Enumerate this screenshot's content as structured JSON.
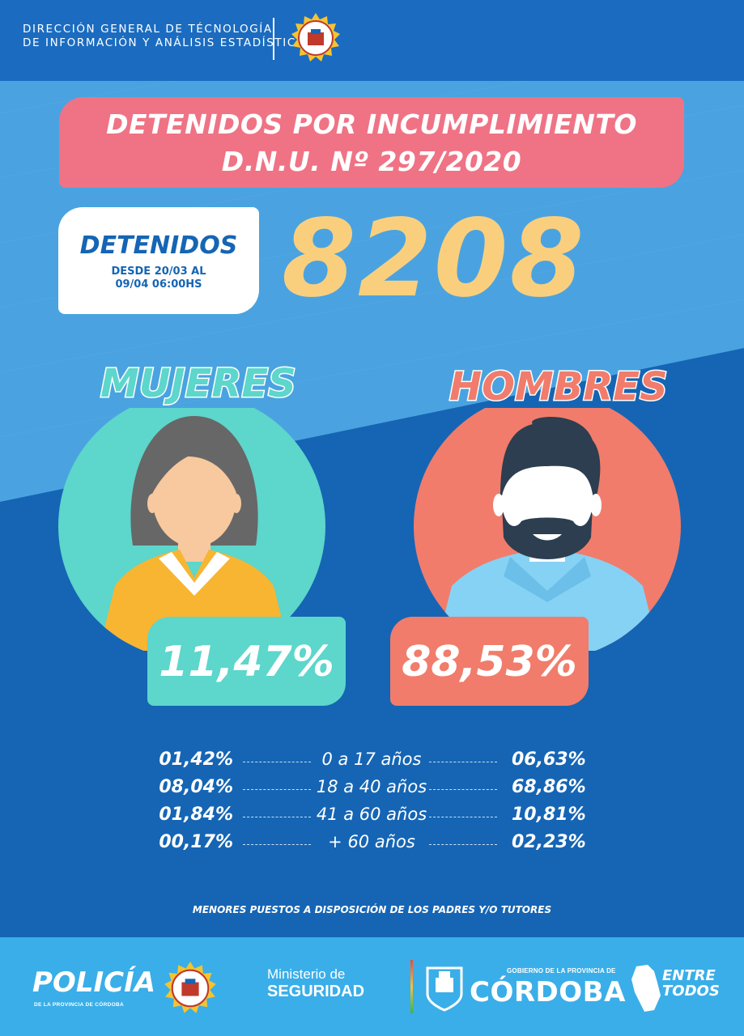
{
  "header": {
    "org_line1": "DIRECCIÓN GENERAL DE TÉCNOLOGÍA",
    "org_line2": "DE INFORMACIÓN Y ANÁLISIS ESTADÍSTICO"
  },
  "title": {
    "line1": "DETENIDOS POR INCUMPLIMIENTO",
    "line2": "D.N.U. Nº 297/2020"
  },
  "detenidos": {
    "label": "DETENIDOS",
    "period_line1": "DESDE 20/03 AL",
    "period_line2": "09/04 06:00HS",
    "total": "8208"
  },
  "women": {
    "label": "MUJERES",
    "percent": "11,47%",
    "color": "#5dd6cb"
  },
  "men": {
    "label": "HOMBRES",
    "percent": "88,53%",
    "color": "#f17c6b"
  },
  "age_breakdown": [
    {
      "women": "01,42%",
      "range": "0 a 17 años",
      "men": "06,63%"
    },
    {
      "women": "08,04%",
      "range": "18 a 40 años",
      "men": "68,86%"
    },
    {
      "women": "01,84%",
      "range": "41 a 60 años",
      "men": "10,81%"
    },
    {
      "women": "00,17%",
      "range": "+ 60 años",
      "men": "02,23%"
    }
  ],
  "note": "MENORES PUESTOS A DISPOSICIÓN DE LOS PADRES Y/O TUTORES",
  "footer": {
    "policia": "POLICÍA",
    "policia_sub": "DE LA PROVINCIA DE CÓRDOBA",
    "ministerio_line1": "Ministerio de",
    "ministerio_line2": "SEGURIDAD",
    "gobierno": "GOBIERNO DE LA PROVINCIA DE",
    "cordoba": "CÓRDOBA",
    "entre": "ENTRE",
    "todos": "TODOS"
  }
}
